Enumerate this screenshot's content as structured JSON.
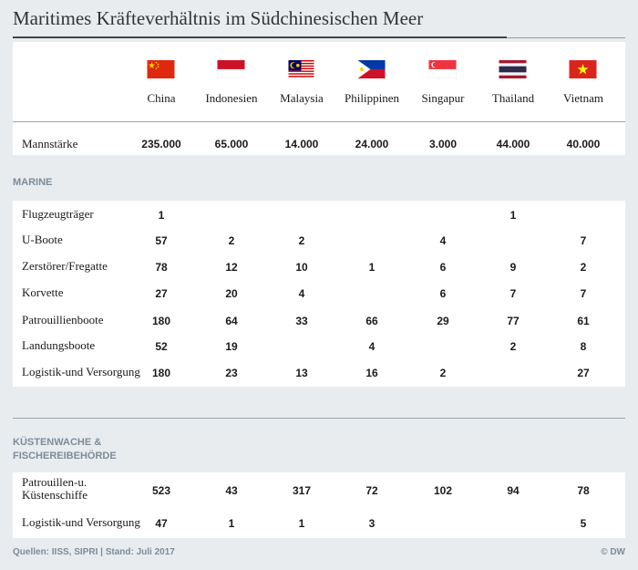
{
  "title": "Maritimes Kräfteverhältnis im Südchinesischen Meer",
  "countries": [
    {
      "name": "China",
      "flag": "china-flag-icon"
    },
    {
      "name": "Indonesien",
      "flag": "indonesia-flag-icon"
    },
    {
      "name": "Malaysia",
      "flag": "malaysia-flag-icon"
    },
    {
      "name": "Philippinen",
      "flag": "philippines-flag-icon"
    },
    {
      "name": "Singapur",
      "flag": "singapore-flag-icon"
    },
    {
      "name": "Thailand",
      "flag": "thailand-flag-icon"
    },
    {
      "name": "Vietnam",
      "flag": "vietnam-flag-icon"
    }
  ],
  "manpower": {
    "label": "Mannstärke",
    "values": [
      "235.000",
      "65.000",
      "14.000",
      "24.000",
      "3.000",
      "44.000",
      "40.000"
    ]
  },
  "sections": [
    {
      "title": "MARINE",
      "rows": [
        {
          "label": "Flugzeugträger",
          "values": [
            "1",
            "",
            "",
            "",
            "",
            "1",
            ""
          ]
        },
        {
          "label": "U-Boote",
          "values": [
            "57",
            "2",
            "2",
            "",
            "4",
            "",
            "7"
          ]
        },
        {
          "label": "Zerstörer/Fregatte",
          "values": [
            "78",
            "12",
            "10",
            "1",
            "6",
            "9",
            "2"
          ]
        },
        {
          "label": "Korvette",
          "values": [
            "27",
            "20",
            "4",
            "",
            "6",
            "7",
            "7"
          ]
        },
        {
          "label": "Patrouillienboote",
          "values": [
            "180",
            "64",
            "33",
            "66",
            "29",
            "77",
            "61"
          ]
        },
        {
          "label": "Landungsboote",
          "values": [
            "52",
            "19",
            "",
            "4",
            "",
            "2",
            "8"
          ]
        },
        {
          "label": "Logistik-und Versorgung",
          "values": [
            "180",
            "23",
            "13",
            "16",
            "2",
            "",
            "27"
          ]
        }
      ]
    },
    {
      "title": "KÜSTENWACHE &\nFISCHEREIBEHÖRDE",
      "rows": [
        {
          "label": "Patrouillen-u.\nKüstenschiffe",
          "values": [
            "523",
            "43",
            "317",
            "72",
            "102",
            "94",
            "78"
          ]
        },
        {
          "label": "Logistik-und Versorgung",
          "values": [
            "47",
            "1",
            "1",
            "3",
            "",
            "",
            "5"
          ]
        }
      ]
    }
  ],
  "footer": {
    "source": "Quellen: IISS, SIPRI | Stand: Juli 2017",
    "credit": "© DW"
  },
  "colors": {
    "background": "#e9ecef",
    "section_title": "#7d8b98",
    "row_band": "#ffffff"
  }
}
